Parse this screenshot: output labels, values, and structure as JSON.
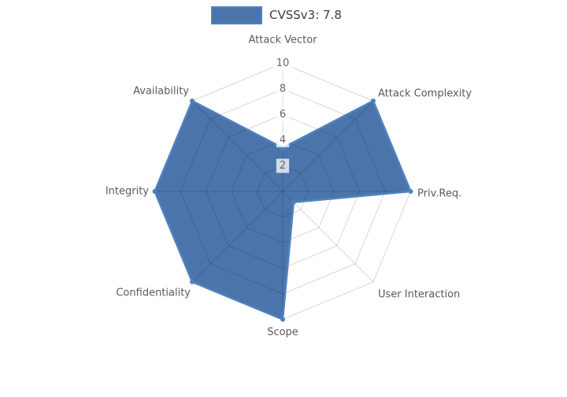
{
  "legend": {
    "label": "CVSSv3: 7.8"
  },
  "chart_data": {
    "type": "radar",
    "categories": [
      "Attack Vector",
      "Attack Complexity",
      "Priv.Req.",
      "User Interaction",
      "Scope",
      "Confidentiality",
      "Integrity",
      "Availability"
    ],
    "series": [
      {
        "name": "CVSSv3: 7.8",
        "values": [
          3.4,
          10,
          10,
          1.2,
          10,
          10,
          10,
          10
        ]
      }
    ],
    "rmin": 0,
    "rmax": 10,
    "tick_step": 2,
    "ticks": [
      2,
      4,
      6,
      8,
      10
    ],
    "grid": "polygon-web",
    "legend_position": "top",
    "start_axis": "top",
    "direction": "clockwise"
  },
  "colors": {
    "fill": "#4B75AA",
    "stroke": "#4F82C0",
    "grid_line": "rgba(0,0,0,0.14)",
    "tick_text": "#666666",
    "tick_backdrop": "rgba(255,255,255,0.75)",
    "axis_label_text": "#5a5a5a",
    "legend_text": "#3c3c3c"
  }
}
